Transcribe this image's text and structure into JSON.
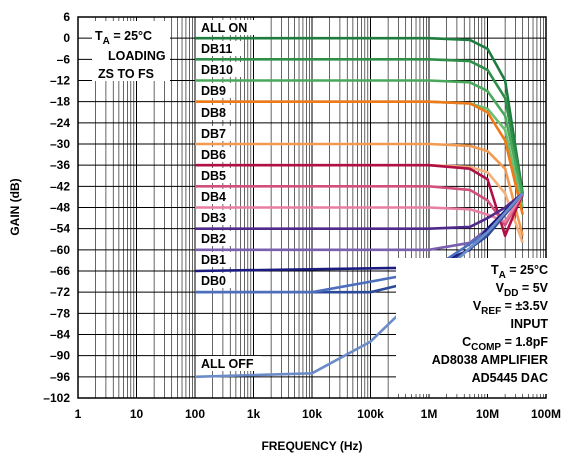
{
  "chart_data": {
    "type": "line",
    "xlabel": "FREQUENCY (Hz)",
    "ylabel": "GAIN (dB)",
    "x_scale": "log",
    "xlim": [
      1,
      100000000
    ],
    "ylim": [
      -102,
      6
    ],
    "x_tick_values": [
      1,
      10,
      100,
      1000,
      10000,
      100000,
      1000000,
      10000000,
      100000000
    ],
    "x_tick_labels": [
      "1",
      "10",
      "100",
      "1k",
      "10k",
      "100k",
      "1M",
      "10M",
      "100M"
    ],
    "y_ticks": [
      6,
      0,
      -6,
      -12,
      -18,
      -24,
      -30,
      -36,
      -42,
      -48,
      -54,
      -60,
      -66,
      -72,
      -78,
      -84,
      -90,
      -96,
      -102
    ],
    "y_tick_labels": [
      "6",
      "0",
      "–6",
      "–12",
      "–18",
      "–24",
      "–30",
      "–36",
      "–42",
      "–48",
      "–54",
      "–60",
      "–66",
      "–72",
      "–78",
      "–84",
      "–90",
      "–96",
      "–102"
    ],
    "grid": true,
    "series": [
      {
        "name": "ALL ON",
        "color": "#1e7d3e",
        "x": [
          100,
          1000000,
          5000000,
          10000000,
          20000000,
          40000000
        ],
        "y": [
          0,
          0,
          -0.5,
          -3,
          -12,
          -44
        ]
      },
      {
        "name": "DB11",
        "color": "#2f8f48",
        "x": [
          100,
          1000000,
          5000000,
          10000000,
          20000000,
          40000000
        ],
        "y": [
          -6,
          -6,
          -6.5,
          -9,
          -17,
          -44
        ]
      },
      {
        "name": "DB10",
        "color": "#4aa85c",
        "x": [
          100,
          1000000,
          5000000,
          10000000,
          20000000,
          40000000
        ],
        "y": [
          -12,
          -12,
          -12.5,
          -15,
          -22,
          -45
        ]
      },
      {
        "name": "DB9",
        "color": "#6cbf6e",
        "x": [
          100,
          1000000,
          5000000,
          10000000,
          20000000,
          40000000
        ],
        "y": [
          -18,
          -18,
          -18.5,
          -20,
          -26,
          -48
        ]
      },
      {
        "name": "DB8",
        "color": "#f07a1a",
        "x": [
          100,
          1000000,
          5000000,
          10000000,
          20000000,
          40000000
        ],
        "y": [
          -18,
          -18,
          -18.5,
          -21,
          -29,
          -50
        ]
      },
      {
        "name": "DB7",
        "color": "#f29a50",
        "x": [
          100,
          1000000,
          5000000,
          10000000,
          20000000,
          40000000
        ],
        "y": [
          -30,
          -30,
          -30.5,
          -32,
          -37,
          -56
        ]
      },
      {
        "name": "DB6",
        "color": "#f5b07a",
        "x": [
          100,
          1000000,
          5000000,
          10000000,
          20000000,
          40000000
        ],
        "y": [
          -36,
          -36,
          -36.5,
          -38,
          -44,
          -58
        ]
      },
      {
        "name": "DB5",
        "color": "#b01045",
        "x": [
          100,
          1000000,
          5000000,
          10000000,
          20000000,
          40000000
        ],
        "y": [
          -36,
          -36,
          -37,
          -40,
          -56,
          -44
        ]
      },
      {
        "name": "DB4",
        "color": "#d2507a",
        "x": [
          100,
          1000000,
          5000000,
          10000000,
          20000000,
          40000000
        ],
        "y": [
          -42,
          -42,
          -43,
          -46,
          -53,
          -44
        ]
      },
      {
        "name": "DB3",
        "color": "#e87fa0",
        "x": [
          100,
          1000000,
          5000000,
          10000000,
          20000000,
          40000000
        ],
        "y": [
          -48,
          -48,
          -48.5,
          -50,
          -52,
          -44
        ]
      },
      {
        "name": "DB2",
        "color": "#4f2a8a",
        "x": [
          100,
          1000000,
          5000000,
          10000000,
          20000000,
          40000000
        ],
        "y": [
          -54,
          -54,
          -53.5,
          -51,
          -48,
          -44
        ]
      },
      {
        "name": "DB1",
        "color": "#7a5fb0",
        "x": [
          100,
          1000000,
          5000000,
          10000000,
          20000000,
          40000000
        ],
        "y": [
          -60,
          -60,
          -58,
          -54,
          -49,
          -44
        ]
      },
      {
        "name": "DB0",
        "color": "#1b1b80",
        "x": [
          100,
          1000000,
          5000000,
          10000000,
          20000000,
          40000000
        ],
        "y": [
          -66,
          -65,
          -60,
          -54,
          -49,
          -44
        ]
      },
      {
        "name": "ALL OFF (A)",
        "color": "#2c4a9a",
        "x": [
          100,
          100000,
          1000000,
          10000000,
          40000000
        ],
        "y": [
          -72,
          -72,
          -68,
          -56,
          -44
        ]
      },
      {
        "name": "ALL OFF (B)",
        "color": "#4d6fbd",
        "x": [
          100,
          10000,
          1000000,
          10000000,
          40000000
        ],
        "y": [
          -72,
          -72,
          -66,
          -55,
          -44
        ]
      },
      {
        "name": "ALL OFF",
        "color": "#6b8cc9",
        "x": [
          100,
          10000,
          100000,
          1000000,
          10000000,
          40000000
        ],
        "y": [
          -96,
          -95,
          -86,
          -70,
          -55,
          -44
        ]
      }
    ],
    "annotations": {
      "top_left": [
        "T_A = 25°C",
        "LOADING",
        "ZS TO FS"
      ],
      "bottom_right": [
        "T_A = 25°C",
        "V_DD = 5V",
        "V_REF = ±3.5V",
        "INPUT",
        "C_COMP = 1.8pF",
        "AD8038 AMPLIFIER",
        "AD5445 DAC"
      ]
    }
  },
  "labels": {
    "all_on": "ALL ON",
    "db11": "DB11",
    "db10": "DB10",
    "db9": "DB9",
    "db8": "DB8",
    "db7": "DB7",
    "db6": "DB6",
    "db5": "DB5",
    "db4": "DB4",
    "db3": "DB3",
    "db2": "DB2",
    "db1": "DB1",
    "db0": "DB0",
    "all_off": "ALL OFF"
  },
  "annotation_text": {
    "tl_ta_main": "T",
    "tl_ta_sub": "A",
    "tl_ta_rest": " = 25°C",
    "tl_loading": "LOADING",
    "tl_zs": "ZS TO FS",
    "br_ta_main": "T",
    "br_ta_sub": "A",
    "br_ta_rest": " = 25°C",
    "br_vdd_main": "V",
    "br_vdd_sub": "DD",
    "br_vdd_rest": " = 5V",
    "br_vref_main": "V",
    "br_vref_sub": "REF",
    "br_vref_rest": " = ±3.5V",
    "br_input": "INPUT",
    "br_ccomp_main": "C",
    "br_ccomp_sub": "COMP",
    "br_ccomp_rest": " = 1.8pF",
    "br_amp": "AD8038 AMPLIFIER",
    "br_dac": "AD5445 DAC"
  }
}
